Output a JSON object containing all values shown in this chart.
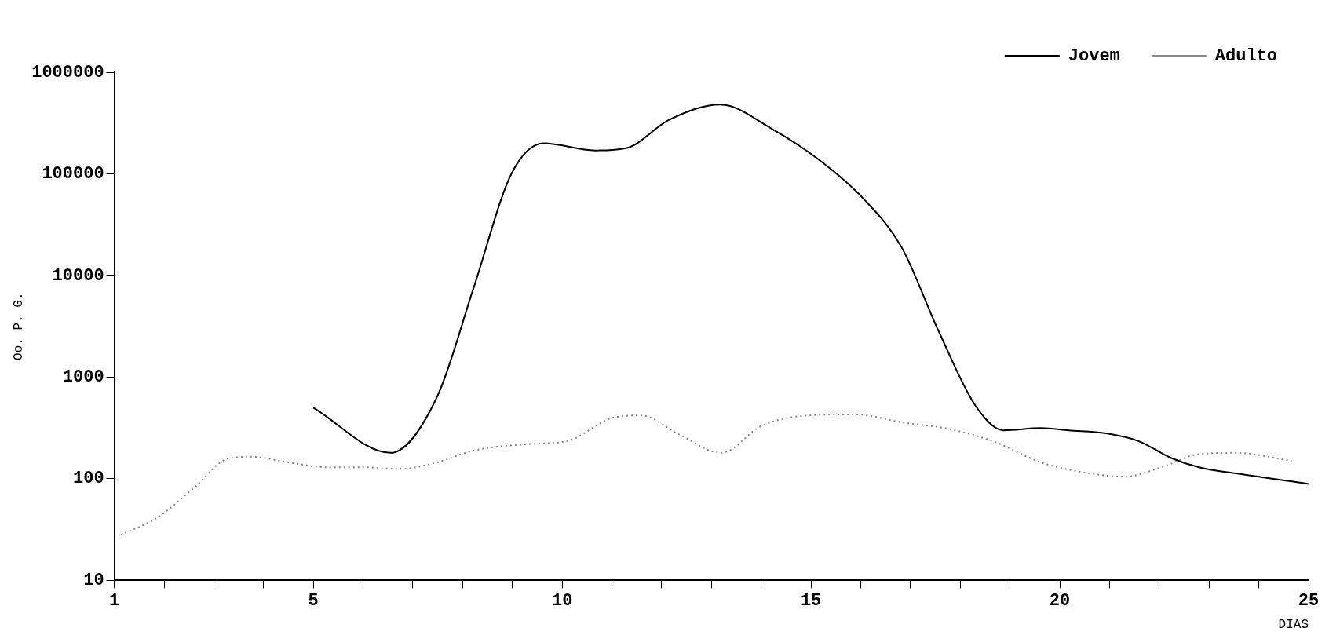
{
  "chart_data": {
    "type": "line",
    "xlabel": "DIAS",
    "ylabel": "Oo. P. G.",
    "log": "y",
    "grid": false,
    "legend": "top right",
    "marker": "none",
    "xlim": [
      1,
      25
    ],
    "ylim": [
      10,
      1000000
    ],
    "xticks": [
      1,
      {
        "value": 2,
        "label": null
      },
      {
        "value": 3,
        "label": null
      },
      {
        "value": 4,
        "label": null
      },
      5,
      {
        "value": 6,
        "label": null
      },
      {
        "value": 7,
        "label": null
      },
      {
        "value": 8,
        "label": null
      },
      {
        "value": 9,
        "label": null
      },
      10,
      {
        "value": 11,
        "label": null
      },
      {
        "value": 12,
        "label": null
      },
      {
        "value": 13,
        "label": null
      },
      {
        "value": 14,
        "label": null
      },
      15,
      {
        "value": 16,
        "label": null
      },
      {
        "value": 17,
        "label": null
      },
      {
        "value": 18,
        "label": null
      },
      {
        "value": 19,
        "label": null
      },
      20,
      {
        "value": 21,
        "label": null
      },
      {
        "value": 22,
        "label": null
      },
      {
        "value": 23,
        "label": null
      },
      {
        "value": 24,
        "label": null
      },
      25
    ],
    "yticks": [
      10,
      100,
      1000,
      10000,
      100000,
      1000000
    ],
    "series": [
      {
        "name": "Jovem",
        "color": "#000000",
        "line_style": "solid",
        "x": [
          5,
          6.55,
          7.48,
          8.23,
          8.98,
          9.63,
          10.66,
          11.3,
          12.15,
          13.18,
          14.2,
          15.14,
          16.07,
          16.82,
          17.57,
          18.31,
          18.87,
          19.62,
          20.18,
          20.93,
          21.58,
          22.24,
          22.8,
          23.54,
          25
        ],
        "values": [
          500,
          180,
          630,
          7800,
          100000,
          200000,
          170000,
          180000,
          340000,
          480000,
          280000,
          140000,
          56000,
          19000,
          2800,
          520,
          300,
          316,
          300,
          280,
          235,
          160,
          130,
          113,
          89
        ]
      },
      {
        "name": "Adulto",
        "color": "#888888",
        "line_style": "dotted",
        "x": [
          1.13,
          1.88,
          2.62,
          3.28,
          3.75,
          4.5,
          5.24,
          5.99,
          6.73,
          7.48,
          8.23,
          9.35,
          10.1,
          11.03,
          11.59,
          12.34,
          13.2,
          14,
          14.95,
          15.89,
          16.82,
          17.76,
          18.7,
          19.62,
          20.56,
          21.3,
          22.05,
          22.8,
          23.54,
          24.66
        ],
        "values": [
          28,
          42,
          83,
          158,
          165,
          145,
          130,
          130,
          125,
          145,
          190,
          220,
          235,
          400,
          420,
          275,
          180,
          330,
          420,
          430,
          360,
          310,
          230,
          145,
          114,
          105,
          130,
          175,
          180,
          150
        ]
      }
    ]
  }
}
